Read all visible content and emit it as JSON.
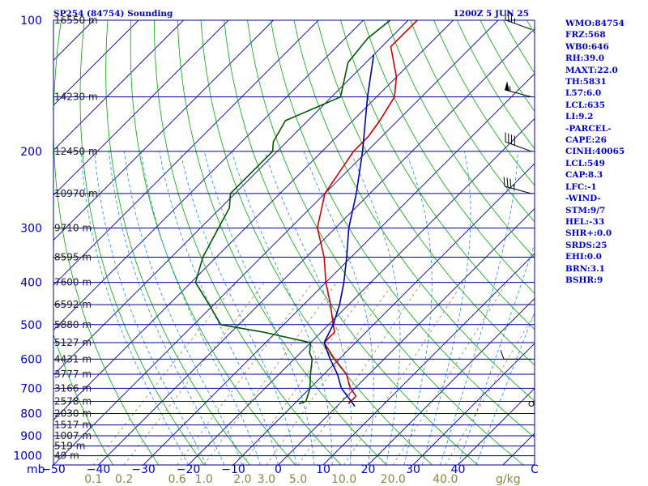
{
  "header": {
    "station": "SP254 (84754) Sounding",
    "time": "1200Z  5 JUN 25"
  },
  "indices": [
    "WMO:84754",
    "FRZ:568",
    "WB0:646",
    "RH:39.0",
    "MAXT:22.0",
    "TH:5831",
    "L57:6.0",
    "LCL:635",
    "LI:9.2",
    "-PARCEL-",
    "CAPE:26",
    "CINH:40065",
    "LCL:549",
    "CAP:8.3",
    "LFC:-1",
    "-WIND-",
    "STM:9/7",
    "HEL:-33",
    "SHR+:0.0",
    "SRDS:25",
    "EHI:0.0",
    "BRN:3.1",
    "BSHR:9"
  ],
  "colors": {
    "isobar": "#000099",
    "isotherm": "#000099",
    "dry_adiabat": "#00aa00",
    "moist_adiabat": "#2288ee",
    "mixing_ratio": "#888844",
    "temperature": "#cc0000",
    "dewpoint": "#005500",
    "parcel": "#0000aa",
    "axis_label": "#0000cc",
    "mixing_label": "#888844"
  },
  "chart_data": {
    "type": "line",
    "chart_kind": "Skew-T log-P",
    "x_axis_unit_label": "C",
    "y_axis_unit_label": "mb",
    "mixing_ratio_unit_label": "g/kg",
    "temperature_ticks": [
      -50,
      -40,
      -30,
      -20,
      -10,
      0,
      10,
      20,
      30,
      40
    ],
    "pressure_ticks": [
      100,
      200,
      300,
      400,
      500,
      600,
      700,
      800,
      900,
      1000
    ],
    "mixing_ratio_labels": [
      "0.1",
      "0.2",
      "0.6",
      "1.0",
      "2.0",
      "3.0",
      "5.0",
      "10.0",
      "20.0",
      "40.0"
    ],
    "mixing_ratio_values": [
      0.1,
      0.2,
      0.6,
      1.0,
      2.0,
      3.0,
      5.0,
      10.0,
      20.0,
      40.0
    ],
    "height_labels": [
      {
        "p": 100,
        "label": "16550 m"
      },
      {
        "p": 150,
        "label": "14230 m"
      },
      {
        "p": 200,
        "label": "12450 m"
      },
      {
        "p": 250,
        "label": "10970 m"
      },
      {
        "p": 300,
        "label": "9710 m"
      },
      {
        "p": 350,
        "label": "8595 m"
      },
      {
        "p": 400,
        "label": "7600 m"
      },
      {
        "p": 450,
        "label": "6592 m"
      },
      {
        "p": 500,
        "label": "5880 m"
      },
      {
        "p": 550,
        "label": "5127 m"
      },
      {
        "p": 600,
        "label": "4431 m"
      },
      {
        "p": 650,
        "label": "3777 m"
      },
      {
        "p": 700,
        "label": "3166 m"
      },
      {
        "p": 750,
        "label": "2578 m"
      },
      {
        "p": 800,
        "label": "2030 m"
      },
      {
        "p": 850,
        "label": "1517 m"
      },
      {
        "p": 900,
        "label": "1007 m"
      },
      {
        "p": 950,
        "label": "519 m"
      },
      {
        "p": 1000,
        "label": "49 m"
      }
    ],
    "extra_isobars": [
      150,
      250,
      350,
      450,
      550,
      650,
      750,
      850,
      950
    ],
    "series": [
      {
        "key": "temperature",
        "points": [
          [
            100,
            -68
          ],
          [
            115,
            -68
          ],
          [
            135,
            -60
          ],
          [
            150,
            -56
          ],
          [
            170,
            -54
          ],
          [
            185,
            -53
          ],
          [
            200,
            -53
          ],
          [
            250,
            -50
          ],
          [
            300,
            -44
          ],
          [
            350,
            -36
          ],
          [
            400,
            -30
          ],
          [
            450,
            -24
          ],
          [
            500,
            -19
          ],
          [
            520,
            -17
          ],
          [
            550,
            -17
          ],
          [
            600,
            -11
          ],
          [
            650,
            -5
          ],
          [
            700,
            -1
          ],
          [
            730,
            2
          ],
          [
            760,
            2
          ]
        ]
      },
      {
        "key": "dewpoint",
        "points": [
          [
            100,
            -74
          ],
          [
            110,
            -75
          ],
          [
            125,
            -74
          ],
          [
            150,
            -68
          ],
          [
            170,
            -75
          ],
          [
            190,
            -73
          ],
          [
            200,
            -71
          ],
          [
            250,
            -71
          ],
          [
            270,
            -68
          ],
          [
            300,
            -66
          ],
          [
            350,
            -63
          ],
          [
            400,
            -59
          ],
          [
            450,
            -51
          ],
          [
            500,
            -44
          ],
          [
            520,
            -33
          ],
          [
            550,
            -20
          ],
          [
            580,
            -18
          ],
          [
            600,
            -16
          ],
          [
            650,
            -13
          ],
          [
            700,
            -10
          ],
          [
            750,
            -8
          ],
          [
            760,
            -9
          ]
        ]
      },
      {
        "key": "parcel",
        "points": [
          [
            120,
            -70
          ],
          [
            150,
            -62
          ],
          [
            200,
            -51
          ],
          [
            250,
            -43
          ],
          [
            300,
            -37
          ],
          [
            350,
            -31
          ],
          [
            400,
            -26
          ],
          [
            450,
            -22
          ],
          [
            500,
            -19
          ],
          [
            550,
            -17
          ],
          [
            600,
            -12
          ],
          [
            650,
            -7
          ],
          [
            700,
            -3
          ],
          [
            770,
            4
          ]
        ]
      }
    ],
    "wind_barbs": [
      {
        "p": 105,
        "dir": 290,
        "spd": 35
      },
      {
        "p": 150,
        "dir": 285,
        "spd": 55
      },
      {
        "p": 200,
        "dir": 290,
        "spd": 40
      },
      {
        "p": 250,
        "dir": 285,
        "spd": 35
      },
      {
        "p": 600,
        "dir": 270,
        "spd": 10
      },
      {
        "p": 760,
        "dir": 0,
        "spd": 0
      }
    ]
  }
}
